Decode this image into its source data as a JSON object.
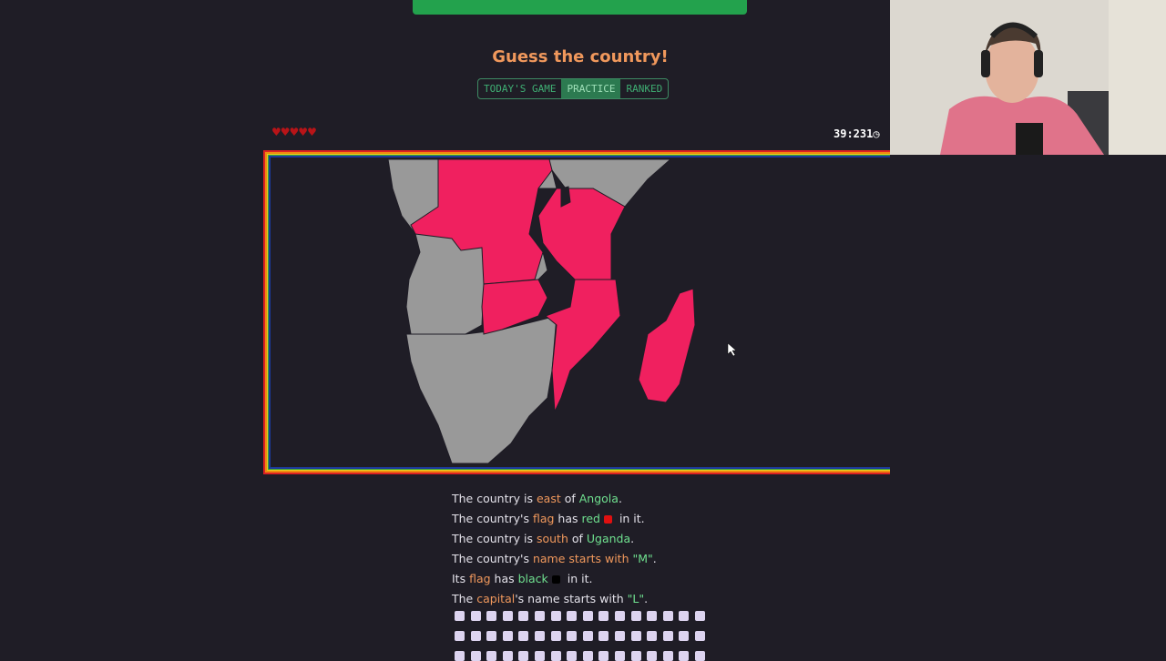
{
  "header": {
    "title": "Guess the country!",
    "modes": [
      "TODAY'S GAME",
      "PRACTICE",
      "RANKED"
    ],
    "active_mode": "PRACTICE"
  },
  "status": {
    "hearts": 5,
    "timer": "39:231",
    "timer_icon": "stopwatch-icon"
  },
  "map": {
    "highlight_color": "#f0205f",
    "land_color": "#999999"
  },
  "clues": [
    {
      "parts": [
        {
          "t": "The country is ",
          "c": "w"
        },
        {
          "t": "east",
          "c": "o"
        },
        {
          "t": " of ",
          "c": "w"
        },
        {
          "t": "Angola",
          "c": "g"
        },
        {
          "t": ".",
          "c": "w"
        }
      ]
    },
    {
      "parts": [
        {
          "t": "The country's ",
          "c": "w"
        },
        {
          "t": "flag",
          "c": "o"
        },
        {
          "t": " has ",
          "c": "w"
        },
        {
          "t": "red",
          "c": "g"
        },
        {
          "swatch": "#e01010"
        },
        {
          "t": " in it.",
          "c": "w"
        }
      ]
    },
    {
      "parts": [
        {
          "t": "The country is ",
          "c": "w"
        },
        {
          "t": "south",
          "c": "o"
        },
        {
          "t": " of ",
          "c": "w"
        },
        {
          "t": "Uganda",
          "c": "g"
        },
        {
          "t": ".",
          "c": "w"
        }
      ]
    },
    {
      "parts": [
        {
          "t": "The country's ",
          "c": "w"
        },
        {
          "t": "name starts with",
          "c": "o"
        },
        {
          "t": " ",
          "c": "w"
        },
        {
          "t": "\"M\"",
          "c": "g"
        },
        {
          "t": ".",
          "c": "w"
        }
      ]
    },
    {
      "parts": [
        {
          "t": "Its ",
          "c": "w"
        },
        {
          "t": "flag",
          "c": "o"
        },
        {
          "t": " has ",
          "c": "w"
        },
        {
          "t": "black",
          "c": "g"
        },
        {
          "swatch": "#000000"
        },
        {
          "t": " in it.",
          "c": "w"
        }
      ]
    },
    {
      "parts": [
        {
          "t": "The ",
          "c": "w"
        },
        {
          "t": "capital",
          "c": "o"
        },
        {
          "t": "'s name starts with ",
          "c": "w"
        },
        {
          "t": "\"L\"",
          "c": "g"
        },
        {
          "t": ".",
          "c": "w"
        }
      ]
    }
  ],
  "guess_squares": 48
}
